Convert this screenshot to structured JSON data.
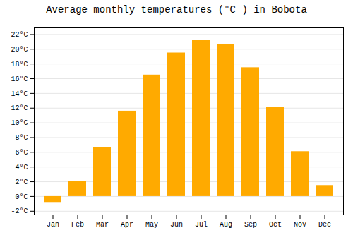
{
  "chart_data": {
    "type": "bar",
    "title": "Average monthly temperatures (°C ) in Bobota",
    "categories": [
      "Jan",
      "Feb",
      "Mar",
      "Apr",
      "May",
      "Jun",
      "Jul",
      "Aug",
      "Sep",
      "Oct",
      "Nov",
      "Dec"
    ],
    "values": [
      -0.8,
      2.1,
      6.7,
      11.6,
      16.5,
      19.5,
      21.2,
      20.7,
      17.5,
      12.1,
      6.1,
      1.5
    ],
    "color": "#FFAA00",
    "ylim": [
      -2.5,
      23
    ],
    "yticks": [
      {
        "value": -2,
        "label": "-2°C"
      },
      {
        "value": 0,
        "label": "0°C"
      },
      {
        "value": 2,
        "label": "2°C"
      },
      {
        "value": 4,
        "label": "4°C"
      },
      {
        "value": 6,
        "label": "6°C"
      },
      {
        "value": 8,
        "label": "8°C"
      },
      {
        "value": 10,
        "label": "10°C"
      },
      {
        "value": 12,
        "label": "12°C"
      },
      {
        "value": 14,
        "label": "14°C"
      },
      {
        "value": 16,
        "label": "16°C"
      },
      {
        "value": 18,
        "label": "18°C"
      },
      {
        "value": 20,
        "label": "20°C"
      },
      {
        "value": 22,
        "label": "22°C"
      }
    ],
    "grid": true
  }
}
